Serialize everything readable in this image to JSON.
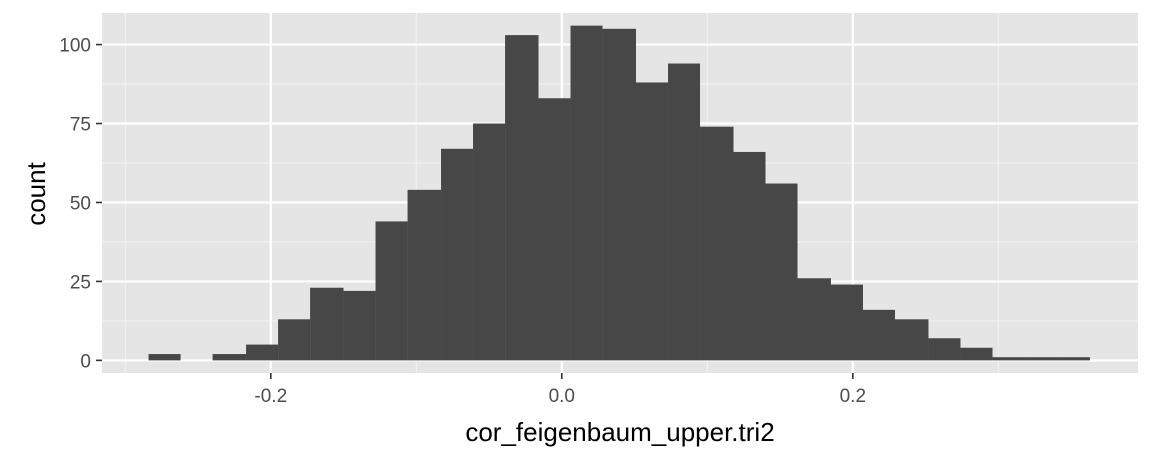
{
  "chart_data": {
    "type": "histogram",
    "xlabel": "cor_feigenbaum_upper.tri2",
    "ylabel": "count",
    "xlim": [
      -0.316,
      0.396
    ],
    "ylim": [
      -4,
      110
    ],
    "x_ticks": [
      {
        "value": -0.2,
        "label": "-0.2"
      },
      {
        "value": 0.0,
        "label": "0.0"
      },
      {
        "value": 0.2,
        "label": "0.2"
      }
    ],
    "x_minor_ticks": [
      -0.3,
      -0.1,
      0.1,
      0.3
    ],
    "y_ticks": [
      {
        "value": 0,
        "label": "0"
      },
      {
        "value": 25,
        "label": "25"
      },
      {
        "value": 50,
        "label": "50"
      },
      {
        "value": 75,
        "label": "75"
      },
      {
        "value": 100,
        "label": "100"
      }
    ],
    "y_minor_ticks": [
      12.5,
      37.5,
      62.5,
      87.5
    ],
    "bins": [
      {
        "x0": -0.284,
        "x1": -0.262,
        "count": 2
      },
      {
        "x0": -0.262,
        "x1": -0.24,
        "count": 0
      },
      {
        "x0": -0.24,
        "x1": -0.217,
        "count": 2
      },
      {
        "x0": -0.217,
        "x1": -0.195,
        "count": 5
      },
      {
        "x0": -0.195,
        "x1": -0.173,
        "count": 13
      },
      {
        "x0": -0.173,
        "x1": -0.15,
        "count": 23
      },
      {
        "x0": -0.15,
        "x1": -0.128,
        "count": 22
      },
      {
        "x0": -0.128,
        "x1": -0.106,
        "count": 44
      },
      {
        "x0": -0.106,
        "x1": -0.083,
        "count": 54
      },
      {
        "x0": -0.083,
        "x1": -0.061,
        "count": 67
      },
      {
        "x0": -0.061,
        "x1": -0.039,
        "count": 75
      },
      {
        "x0": -0.039,
        "x1": -0.016,
        "count": 103
      },
      {
        "x0": -0.016,
        "x1": 0.006,
        "count": 83
      },
      {
        "x0": 0.006,
        "x1": 0.028,
        "count": 106
      },
      {
        "x0": 0.028,
        "x1": 0.051,
        "count": 105
      },
      {
        "x0": 0.051,
        "x1": 0.073,
        "count": 88
      },
      {
        "x0": 0.073,
        "x1": 0.095,
        "count": 94
      },
      {
        "x0": 0.095,
        "x1": 0.118,
        "count": 74
      },
      {
        "x0": 0.118,
        "x1": 0.14,
        "count": 66
      },
      {
        "x0": 0.14,
        "x1": 0.162,
        "count": 56
      },
      {
        "x0": 0.162,
        "x1": 0.185,
        "count": 26
      },
      {
        "x0": 0.185,
        "x1": 0.207,
        "count": 24
      },
      {
        "x0": 0.207,
        "x1": 0.229,
        "count": 16
      },
      {
        "x0": 0.229,
        "x1": 0.252,
        "count": 13
      },
      {
        "x0": 0.252,
        "x1": 0.274,
        "count": 7
      },
      {
        "x0": 0.274,
        "x1": 0.296,
        "count": 4
      },
      {
        "x0": 0.296,
        "x1": 0.319,
        "count": 1
      },
      {
        "x0": 0.319,
        "x1": 0.341,
        "count": 1
      },
      {
        "x0": 0.341,
        "x1": 0.363,
        "count": 1
      }
    ],
    "grid": true,
    "legend": "none",
    "colors": {
      "panel_background": "#e5e5e5",
      "grid_major": "#ffffff",
      "grid_minor": "#f2f2f2",
      "bar_fill": "#474747",
      "tick_mark": "#333333"
    }
  }
}
